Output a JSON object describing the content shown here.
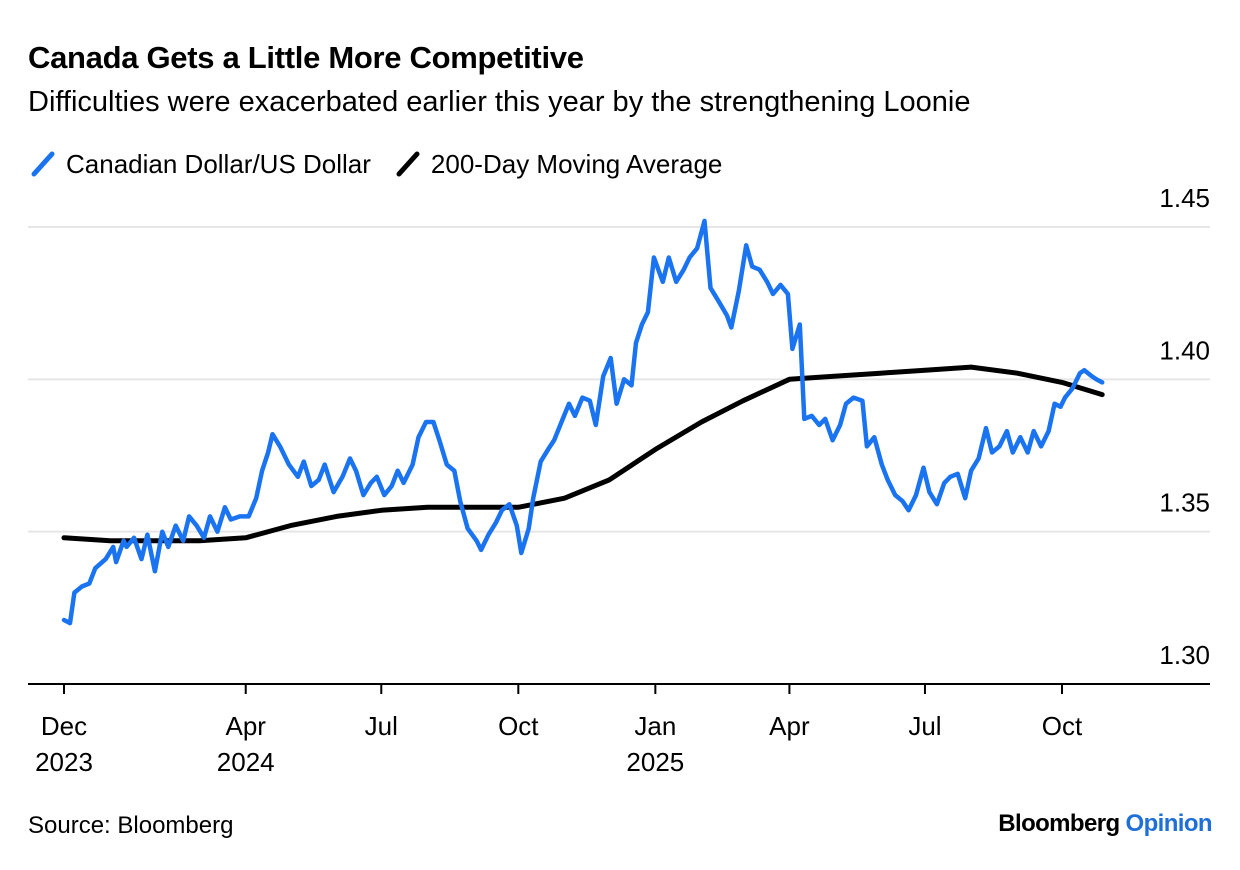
{
  "chart_data": {
    "type": "line",
    "title": "Canada Gets a Little More Competitive",
    "subtitle": "Difficulties were exacerbated earlier this year by the strengthening Loonie",
    "xlabel": "",
    "ylabel": "",
    "ylim": [
      1.3,
      1.45
    ],
    "yticks": [
      "1.45",
      "1.40",
      "1.35",
      "1.30"
    ],
    "y_axis_position": "right",
    "grid": true,
    "legend_position": "top-left",
    "x_range": [
      "2023-11",
      "2025-12"
    ],
    "xticks": [
      {
        "month": "Dec",
        "year": "2023",
        "date": "2023-12"
      },
      {
        "month": "Apr",
        "year": "2024",
        "date": "2024-04"
      },
      {
        "month": "Jul",
        "year": "",
        "date": "2024-07"
      },
      {
        "month": "Oct",
        "year": "",
        "date": "2024-10"
      },
      {
        "month": "Jan",
        "year": "2025",
        "date": "2025-01"
      },
      {
        "month": "Apr",
        "year": "",
        "date": "2025-04"
      },
      {
        "month": "Jul",
        "year": "",
        "date": "2025-07"
      },
      {
        "month": "Oct",
        "year": "",
        "date": "2025-10"
      }
    ],
    "series": [
      {
        "name": "Canadian Dollar/US Dollar",
        "color": "#1a73f0",
        "points": [
          [
            "2023-12-01",
            1.321
          ],
          [
            "2023-12-05",
            1.32
          ],
          [
            "2023-12-08",
            1.33
          ],
          [
            "2023-12-13",
            1.332
          ],
          [
            "2023-12-18",
            1.333
          ],
          [
            "2023-12-22",
            1.338
          ],
          [
            "2023-12-29",
            1.341
          ],
          [
            "2024-01-03",
            1.345
          ],
          [
            "2024-01-05",
            1.34
          ],
          [
            "2024-01-10",
            1.347
          ],
          [
            "2024-01-12",
            1.345
          ],
          [
            "2024-01-17",
            1.348
          ],
          [
            "2024-01-22",
            1.341
          ],
          [
            "2024-01-26",
            1.349
          ],
          [
            "2024-01-31",
            1.337
          ],
          [
            "2024-02-05",
            1.35
          ],
          [
            "2024-02-09",
            1.345
          ],
          [
            "2024-02-14",
            1.352
          ],
          [
            "2024-02-19",
            1.347
          ],
          [
            "2024-02-23",
            1.355
          ],
          [
            "2024-02-28",
            1.352
          ],
          [
            "2024-03-04",
            1.348
          ],
          [
            "2024-03-08",
            1.355
          ],
          [
            "2024-03-13",
            1.35
          ],
          [
            "2024-03-18",
            1.358
          ],
          [
            "2024-03-22",
            1.354
          ],
          [
            "2024-03-28",
            1.355
          ],
          [
            "2024-04-03",
            1.355
          ],
          [
            "2024-04-08",
            1.361
          ],
          [
            "2024-04-12",
            1.37
          ],
          [
            "2024-04-16",
            1.376
          ],
          [
            "2024-04-19",
            1.382
          ],
          [
            "2024-04-24",
            1.378
          ],
          [
            "2024-04-30",
            1.372
          ],
          [
            "2024-05-06",
            1.368
          ],
          [
            "2024-05-10",
            1.373
          ],
          [
            "2024-05-15",
            1.365
          ],
          [
            "2024-05-20",
            1.367
          ],
          [
            "2024-05-24",
            1.372
          ],
          [
            "2024-05-30",
            1.363
          ],
          [
            "2024-06-05",
            1.368
          ],
          [
            "2024-06-10",
            1.374
          ],
          [
            "2024-06-14",
            1.37
          ],
          [
            "2024-06-19",
            1.362
          ],
          [
            "2024-06-24",
            1.366
          ],
          [
            "2024-06-28",
            1.368
          ],
          [
            "2024-07-03",
            1.362
          ],
          [
            "2024-07-08",
            1.365
          ],
          [
            "2024-07-12",
            1.37
          ],
          [
            "2024-07-16",
            1.366
          ],
          [
            "2024-07-22",
            1.372
          ],
          [
            "2024-07-26",
            1.381
          ],
          [
            "2024-07-31",
            1.386
          ],
          [
            "2024-08-05",
            1.386
          ],
          [
            "2024-08-09",
            1.38
          ],
          [
            "2024-08-14",
            1.372
          ],
          [
            "2024-08-19",
            1.37
          ],
          [
            "2024-08-23",
            1.36
          ],
          [
            "2024-08-28",
            1.351
          ],
          [
            "2024-09-03",
            1.347
          ],
          [
            "2024-09-06",
            1.344
          ],
          [
            "2024-09-11",
            1.349
          ],
          [
            "2024-09-16",
            1.353
          ],
          [
            "2024-09-20",
            1.357
          ],
          [
            "2024-09-25",
            1.359
          ],
          [
            "2024-09-30",
            1.352
          ],
          [
            "2024-10-03",
            1.343
          ],
          [
            "2024-10-08",
            1.351
          ],
          [
            "2024-10-11",
            1.361
          ],
          [
            "2024-10-16",
            1.373
          ],
          [
            "2024-10-21",
            1.377
          ],
          [
            "2024-10-25",
            1.38
          ],
          [
            "2024-10-30",
            1.386
          ],
          [
            "2024-11-04",
            1.392
          ],
          [
            "2024-11-08",
            1.388
          ],
          [
            "2024-11-13",
            1.394
          ],
          [
            "2024-11-18",
            1.393
          ],
          [
            "2024-11-22",
            1.385
          ],
          [
            "2024-11-27",
            1.401
          ],
          [
            "2024-12-02",
            1.407
          ],
          [
            "2024-12-06",
            1.392
          ],
          [
            "2024-12-11",
            1.4
          ],
          [
            "2024-12-16",
            1.398
          ],
          [
            "2024-12-19",
            1.412
          ],
          [
            "2024-12-23",
            1.418
          ],
          [
            "2024-12-27",
            1.422
          ],
          [
            "2024-12-31",
            1.44
          ],
          [
            "2025-01-06",
            1.432
          ],
          [
            "2025-01-10",
            1.44
          ],
          [
            "2025-01-15",
            1.432
          ],
          [
            "2025-01-20",
            1.436
          ],
          [
            "2025-01-24",
            1.44
          ],
          [
            "2025-01-29",
            1.443
          ],
          [
            "2025-02-03",
            1.452
          ],
          [
            "2025-02-07",
            1.43
          ],
          [
            "2025-02-12",
            1.426
          ],
          [
            "2025-02-18",
            1.421
          ],
          [
            "2025-02-21",
            1.417
          ],
          [
            "2025-02-26",
            1.429
          ],
          [
            "2025-03-03",
            1.444
          ],
          [
            "2025-03-07",
            1.437
          ],
          [
            "2025-03-12",
            1.436
          ],
          [
            "2025-03-17",
            1.432
          ],
          [
            "2025-03-21",
            1.428
          ],
          [
            "2025-03-26",
            1.431
          ],
          [
            "2025-03-31",
            1.428
          ],
          [
            "2025-04-03",
            1.41
          ],
          [
            "2025-04-08",
            1.418
          ],
          [
            "2025-04-11",
            1.387
          ],
          [
            "2025-04-16",
            1.388
          ],
          [
            "2025-04-21",
            1.385
          ],
          [
            "2025-04-25",
            1.387
          ],
          [
            "2025-04-30",
            1.38
          ],
          [
            "2025-05-05",
            1.385
          ],
          [
            "2025-05-09",
            1.392
          ],
          [
            "2025-05-14",
            1.394
          ],
          [
            "2025-05-20",
            1.393
          ],
          [
            "2025-05-23",
            1.378
          ],
          [
            "2025-05-28",
            1.381
          ],
          [
            "2025-06-02",
            1.372
          ],
          [
            "2025-06-06",
            1.367
          ],
          [
            "2025-06-11",
            1.362
          ],
          [
            "2025-06-16",
            1.36
          ],
          [
            "2025-06-20",
            1.357
          ],
          [
            "2025-06-25",
            1.362
          ],
          [
            "2025-06-30",
            1.371
          ],
          [
            "2025-07-04",
            1.363
          ],
          [
            "2025-07-09",
            1.359
          ],
          [
            "2025-07-14",
            1.366
          ],
          [
            "2025-07-18",
            1.368
          ],
          [
            "2025-07-23",
            1.369
          ],
          [
            "2025-07-28",
            1.361
          ],
          [
            "2025-08-01",
            1.37
          ],
          [
            "2025-08-06",
            1.374
          ],
          [
            "2025-08-11",
            1.384
          ],
          [
            "2025-08-15",
            1.376
          ],
          [
            "2025-08-20",
            1.378
          ],
          [
            "2025-08-25",
            1.383
          ],
          [
            "2025-08-29",
            1.376
          ],
          [
            "2025-09-03",
            1.381
          ],
          [
            "2025-09-08",
            1.376
          ],
          [
            "2025-09-12",
            1.383
          ],
          [
            "2025-09-17",
            1.378
          ],
          [
            "2025-09-22",
            1.383
          ],
          [
            "2025-09-26",
            1.392
          ],
          [
            "2025-09-30",
            1.391
          ],
          [
            "2025-10-03",
            1.394
          ],
          [
            "2025-10-08",
            1.397
          ],
          [
            "2025-10-13",
            1.402
          ],
          [
            "2025-10-16",
            1.403
          ],
          [
            "2025-10-21",
            1.401
          ],
          [
            "2025-10-24",
            1.4
          ],
          [
            "2025-10-28",
            1.399
          ]
        ]
      },
      {
        "name": "200-Day Moving Average",
        "color": "#000000",
        "points": [
          [
            "2023-12-01",
            1.348
          ],
          [
            "2024-01-01",
            1.347
          ],
          [
            "2024-02-01",
            1.347
          ],
          [
            "2024-03-01",
            1.347
          ],
          [
            "2024-04-01",
            1.348
          ],
          [
            "2024-05-01",
            1.352
          ],
          [
            "2024-06-01",
            1.355
          ],
          [
            "2024-07-01",
            1.357
          ],
          [
            "2024-08-01",
            1.358
          ],
          [
            "2024-09-01",
            1.358
          ],
          [
            "2024-10-01",
            1.358
          ],
          [
            "2024-11-01",
            1.361
          ],
          [
            "2024-12-01",
            1.367
          ],
          [
            "2025-01-01",
            1.377
          ],
          [
            "2025-02-01",
            1.386
          ],
          [
            "2025-03-01",
            1.393
          ],
          [
            "2025-04-01",
            1.4
          ],
          [
            "2025-05-01",
            1.401
          ],
          [
            "2025-06-01",
            1.402
          ],
          [
            "2025-07-01",
            1.403
          ],
          [
            "2025-08-01",
            1.404
          ],
          [
            "2025-09-01",
            1.402
          ],
          [
            "2025-10-01",
            1.399
          ],
          [
            "2025-10-28",
            1.395
          ]
        ]
      }
    ]
  },
  "source_label": "Source: Bloomberg",
  "brand": {
    "name": "Bloomberg",
    "section": "Opinion"
  }
}
